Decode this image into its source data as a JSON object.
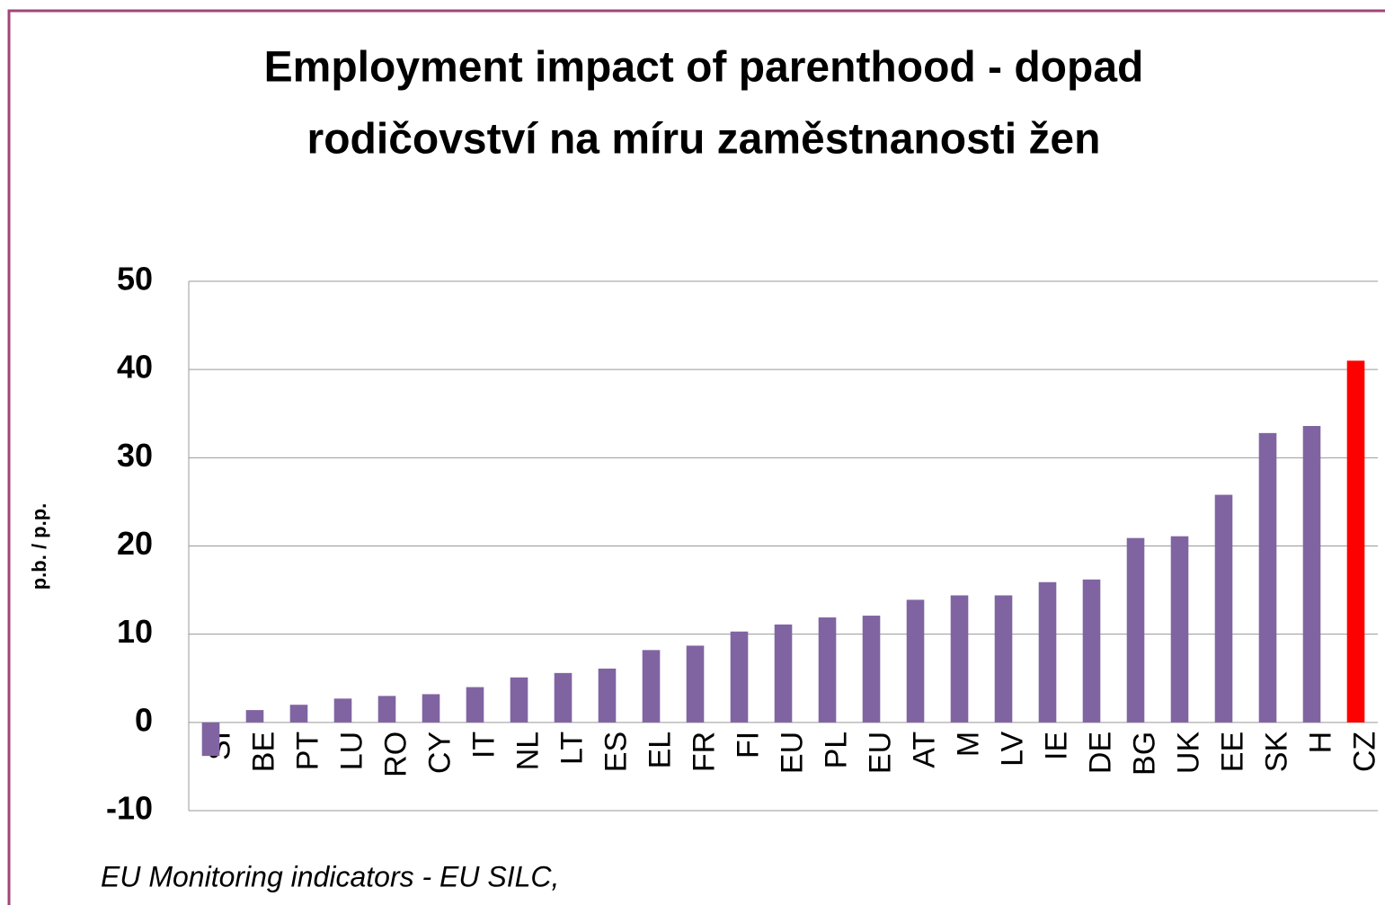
{
  "chart_data": {
    "type": "bar",
    "title": [
      "Employment impact of parenthood - dopad",
      "rodičovství na míru zaměstnanosti žen"
    ],
    "y_label": "p.b. / p.p.",
    "note": "EU Monitoring  indicators - EU SILC,",
    "categories": [
      "SI",
      "BE",
      "PT",
      "LU",
      "RO",
      "CY",
      "IT",
      "NL",
      "LT",
      "ES",
      "EL",
      "FR",
      "FI",
      "EU",
      "PL",
      "EU",
      "AT",
      "M",
      "LV",
      "IE",
      "DE",
      "BG",
      "UK",
      "EE",
      "SK",
      "H",
      "CZ"
    ],
    "values": [
      -3.8,
      1.4,
      2.0,
      2.7,
      3.0,
      3.2,
      4.0,
      5.1,
      5.6,
      6.1,
      8.2,
      8.7,
      10.3,
      11.1,
      11.9,
      12.1,
      13.9,
      14.4,
      14.4,
      15.9,
      16.2,
      20.9,
      21.1,
      25.8,
      32.8,
      33.6,
      41.0
    ],
    "colors": [
      "#8064a2",
      "#8064a2",
      "#8064a2",
      "#8064a2",
      "#8064a2",
      "#8064a2",
      "#8064a2",
      "#8064a2",
      "#8064a2",
      "#8064a2",
      "#8064a2",
      "#8064a2",
      "#8064a2",
      "#8064a2",
      "#8064a2",
      "#8064a2",
      "#8064a2",
      "#8064a2",
      "#8064a2",
      "#8064a2",
      "#8064a2",
      "#8064a2",
      "#8064a2",
      "#8064a2",
      "#8064a2",
      "#8064a2",
      "#ff0000"
    ],
    "ylim": [
      -10,
      50
    ],
    "yticks": [
      -10,
      0,
      10,
      20,
      30,
      40,
      50
    ],
    "grid": true
  }
}
